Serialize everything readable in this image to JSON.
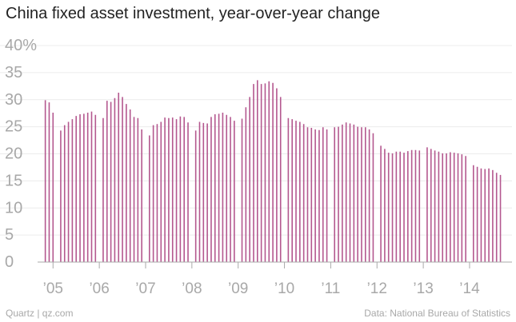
{
  "title": "China fixed asset investment, year-over-year change",
  "source": "Data: National Bureau of Statistics",
  "credit": "Quartz | qz.com",
  "chart_data": {
    "type": "bar",
    "title": "China fixed asset investment, year-over-year change",
    "xlabel": "",
    "ylabel": "",
    "ylim": [
      0,
      40
    ],
    "yticks": [
      {
        "value": 0,
        "label": "0"
      },
      {
        "value": 5,
        "label": "5"
      },
      {
        "value": 10,
        "label": "10"
      },
      {
        "value": 15,
        "label": "15"
      },
      {
        "value": 20,
        "label": "20"
      },
      {
        "value": 25,
        "label": "25"
      },
      {
        "value": 30,
        "label": "30"
      },
      {
        "value": 35,
        "label": "35"
      },
      {
        "value": 40,
        "label": "40%"
      }
    ],
    "xticks": [
      {
        "value": "2005-01",
        "label": "’05"
      },
      {
        "value": "2006-01",
        "label": "’06"
      },
      {
        "value": "2007-01",
        "label": "’07"
      },
      {
        "value": "2008-01",
        "label": "’08"
      },
      {
        "value": "2009-01",
        "label": "’09"
      },
      {
        "value": "2010-01",
        "label": "’10"
      },
      {
        "value": "2011-01",
        "label": "’11"
      },
      {
        "value": "2012-01",
        "label": "’12"
      },
      {
        "value": "2013-01",
        "label": "’13"
      },
      {
        "value": "2014-01",
        "label": "’14"
      }
    ],
    "xlim": [
      "2004-09",
      "2014-12"
    ],
    "grid": true,
    "bar_color": "#b4588f",
    "grid_color": "#ececec",
    "axis_color": "#aaaaaa",
    "label_color": "#a8a8a8",
    "series": [
      {
        "x": [
          "2004-11",
          "2004-12",
          "2005-01",
          "2005-03",
          "2005-04",
          "2005-05",
          "2005-06",
          "2005-07",
          "2005-08",
          "2005-09",
          "2005-10",
          "2005-11",
          "2005-12",
          "2006-02",
          "2006-03",
          "2006-04",
          "2006-05",
          "2006-06",
          "2006-07",
          "2006-08",
          "2006-09",
          "2006-10",
          "2006-11",
          "2006-12",
          "2007-02",
          "2007-03",
          "2007-04",
          "2007-05",
          "2007-06",
          "2007-07",
          "2007-08",
          "2007-09",
          "2007-10",
          "2007-11",
          "2007-12",
          "2008-02",
          "2008-03",
          "2008-04",
          "2008-05",
          "2008-06",
          "2008-07",
          "2008-08",
          "2008-09",
          "2008-10",
          "2008-11",
          "2008-12",
          "2009-02",
          "2009-03",
          "2009-04",
          "2009-05",
          "2009-06",
          "2009-07",
          "2009-08",
          "2009-09",
          "2009-10",
          "2009-11",
          "2009-12",
          "2010-02",
          "2010-03",
          "2010-04",
          "2010-05",
          "2010-06",
          "2010-07",
          "2010-08",
          "2010-09",
          "2010-10",
          "2010-11",
          "2010-12",
          "2011-02",
          "2011-03",
          "2011-04",
          "2011-05",
          "2011-06",
          "2011-07",
          "2011-08",
          "2011-09",
          "2011-10",
          "2011-11",
          "2011-12",
          "2012-02",
          "2012-03",
          "2012-04",
          "2012-05",
          "2012-06",
          "2012-07",
          "2012-08",
          "2012-09",
          "2012-10",
          "2012-11",
          "2012-12",
          "2013-02",
          "2013-03",
          "2013-04",
          "2013-05",
          "2013-06",
          "2013-07",
          "2013-08",
          "2013-09",
          "2013-10",
          "2013-11",
          "2013-12",
          "2014-02",
          "2014-03",
          "2014-04",
          "2014-05",
          "2014-06",
          "2014-07",
          "2014-08",
          "2014-09"
        ],
        "values": [
          29.9,
          29.5,
          27.6,
          24.3,
          25.3,
          25.9,
          26.4,
          27.0,
          27.3,
          27.4,
          27.6,
          27.8,
          27.2,
          26.6,
          29.8,
          29.6,
          30.3,
          31.3,
          30.5,
          29.2,
          28.2,
          26.8,
          26.6,
          24.5,
          23.4,
          25.3,
          25.5,
          25.9,
          26.7,
          26.6,
          26.7,
          26.4,
          26.9,
          26.8,
          25.8,
          24.3,
          25.9,
          25.7,
          25.6,
          26.8,
          27.3,
          27.4,
          27.6,
          27.2,
          26.8,
          26.1,
          26.5,
          28.6,
          30.5,
          32.9,
          33.6,
          32.9,
          33.0,
          33.4,
          33.1,
          32.1,
          30.5,
          26.6,
          26.4,
          26.1,
          25.9,
          25.5,
          24.9,
          24.8,
          24.5,
          24.4,
          24.9,
          24.5,
          24.9,
          25.0,
          25.4,
          25.8,
          25.6,
          25.4,
          25.0,
          24.9,
          24.9,
          24.5,
          23.8,
          21.5,
          20.9,
          20.2,
          20.1,
          20.4,
          20.4,
          20.2,
          20.5,
          20.7,
          20.7,
          20.6,
          21.2,
          20.9,
          20.6,
          20.4,
          20.1,
          20.1,
          20.3,
          20.2,
          20.1,
          19.9,
          19.6,
          17.9,
          17.6,
          17.3,
          17.2,
          17.3,
          17.0,
          16.5,
          16.1
        ]
      }
    ]
  }
}
